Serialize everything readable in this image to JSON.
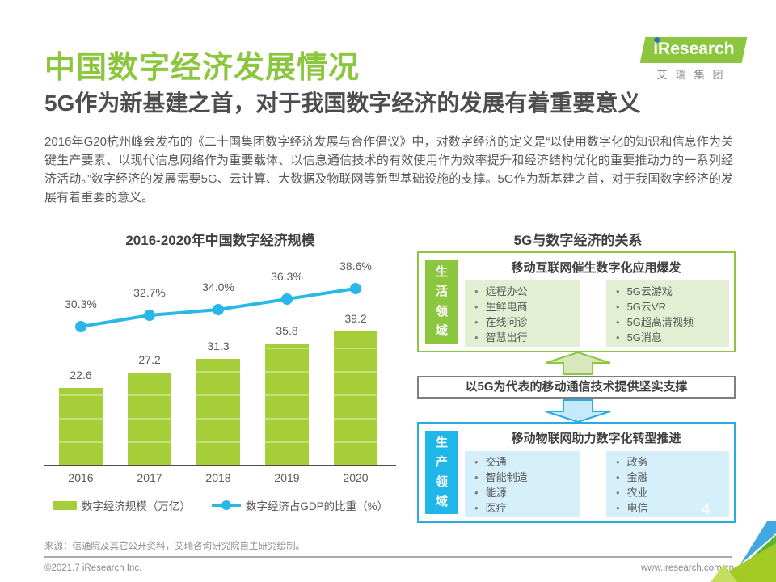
{
  "theme": {
    "green": "#8cc63f",
    "blue": "#29abe2",
    "tile_blue": "#1fb6ea",
    "bar_green": "#a6ce39",
    "line_blue": "#29b7e8",
    "light_green": "#e3efd2",
    "light_blue": "#d6f0fb",
    "arrow_green_fill": "#d9e8bc",
    "arrow_blue_fill": "#c5eafa"
  },
  "header": {
    "title": "中国数字经济发展情况",
    "subtitle": "5G作为新基建之首，对于我国数字经济的发展有着重要意义",
    "paragraph": "2016年G20杭州峰会发布的《二十国集团数字经济发展与合作倡议》中，对数字经济的定义是“以使用数字化的知识和信息作为关键生产要素、以现代信息网络作为重要载体、以信息通信技术的有效使用作为效率提升和经济结构优化的重要推动力的一系列经济活动。”数字经济的发展需要5G、云计算、大数据及物联网等新型基础设施的支撑。5G作为新基建之首，对于我国数字经济的发展有着重要的意义。"
  },
  "logo": {
    "brand_i": "i",
    "brand_rest": "Research",
    "company": "艾瑞集团"
  },
  "chart_data": {
    "type": "bar",
    "title": "2016-2020年中国数字经济规模",
    "categories": [
      "2016",
      "2017",
      "2018",
      "2019",
      "2020"
    ],
    "series": [
      {
        "name": "数字经济规模（万亿）",
        "type": "bar",
        "values": [
          22.6,
          27.2,
          31.3,
          35.8,
          39.2
        ],
        "labels": [
          "22.6",
          "27.2",
          "31.3",
          "35.8",
          "39.2"
        ],
        "color": "#a6ce39"
      },
      {
        "name": "数字经济占GDP的比重（%）",
        "type": "line",
        "values": [
          30.3,
          32.7,
          34.0,
          36.3,
          38.6
        ],
        "labels": [
          "30.3%",
          "32.7%",
          "34.0%",
          "36.3%",
          "38.6%"
        ],
        "color": "#29b7e8"
      }
    ],
    "xlabel": "",
    "ylabel": "",
    "legend_position": "bottom",
    "grid": false
  },
  "diagram": {
    "title": "5G与数字经济的关系",
    "top": {
      "side_label": "生活领域",
      "heading": "移动互联网催生数字化应用爆发",
      "left_items": [
        "远程办公",
        "生鲜电商",
        "在线问诊",
        "智慧出行"
      ],
      "right_items": [
        "5G云游戏",
        "5G云VR",
        "5G超高清视频",
        "5G消息"
      ]
    },
    "middle": {
      "text": "以5G为代表的移动通信技术提供坚实支撑"
    },
    "bottom": {
      "side_label": "生产领域",
      "heading": "移动物联网助力数字化转型推进",
      "left_items": [
        "交通",
        "智能制造",
        "能源",
        "医疗"
      ],
      "right_items": [
        "政务",
        "金融",
        "农业",
        "电信"
      ]
    }
  },
  "footer": {
    "source": "来源：信通院及其它公开资料，艾瑞咨询研究院自主研究绘制。",
    "copyright": "©2021.7 iResearch Inc.",
    "website": "www.iresearch.com.cn",
    "page_number": "4"
  }
}
